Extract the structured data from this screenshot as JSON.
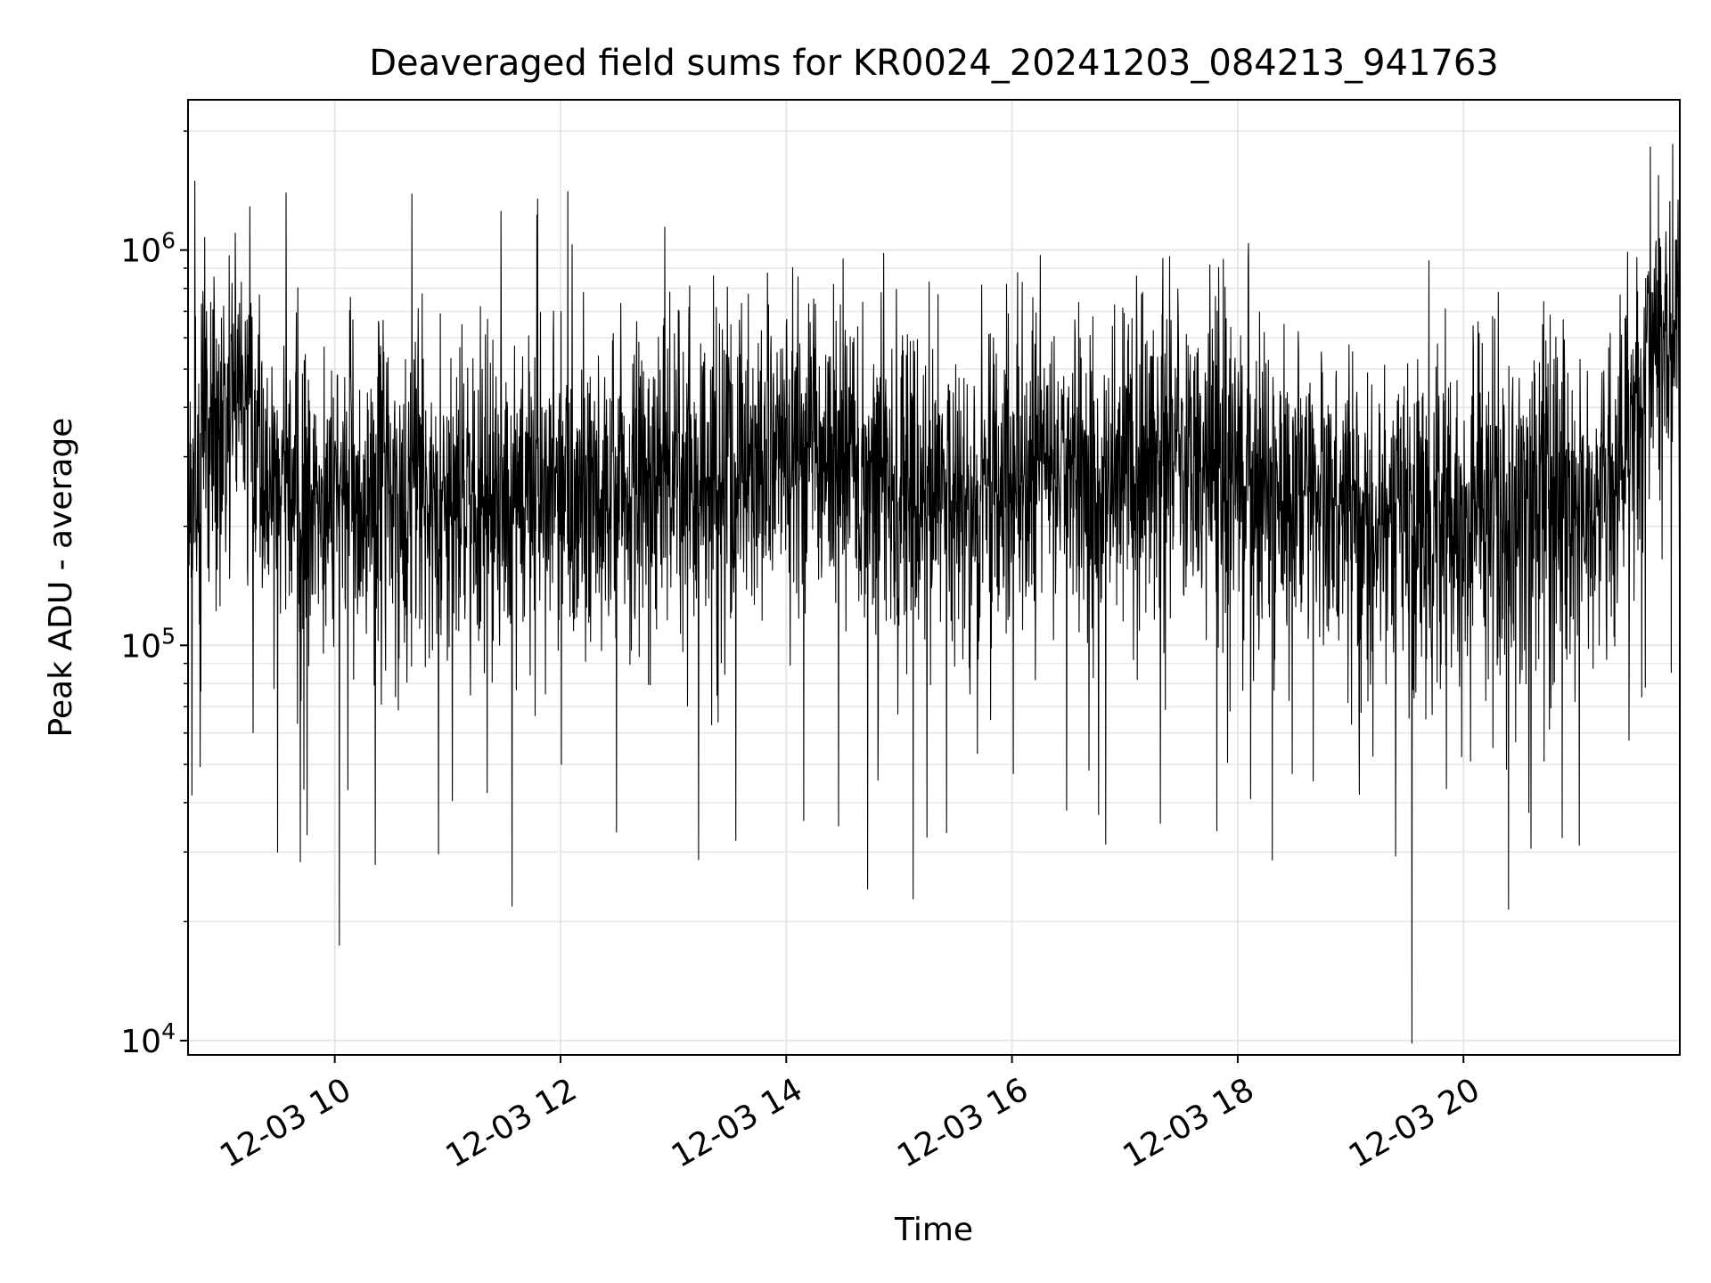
{
  "chart_data": {
    "type": "line",
    "title": "Deaveraged field sums for KR0024_20241203_084213_941763",
    "xlabel": "Time",
    "ylabel": "Peak ADU - average",
    "yscale": "log",
    "ylim": [
      9200,
      2400000
    ],
    "xlim": [
      "12-03 08:42",
      "12-03 21:55"
    ],
    "xticks": [
      "12-03 10",
      "12-03 12",
      "12-03 14",
      "12-03 16",
      "12-03 18",
      "12-03 20"
    ],
    "yticks": [
      {
        "value": 10000,
        "base": "10",
        "exp": "4"
      },
      {
        "value": 100000,
        "base": "10",
        "exp": "5"
      },
      {
        "value": 1000000,
        "base": "10",
        "exp": "6"
      }
    ],
    "grid": true,
    "line_color": "#000000",
    "grid_color": "#e6e6e6",
    "series": [
      {
        "x": [
          "12-03 08:42",
          "12-03 08:55",
          "12-03 09:10",
          "12-03 09:25",
          "12-03 09:40",
          "12-03 10:00",
          "12-03 10:20",
          "12-03 10:40",
          "12-03 11:00",
          "12-03 11:20",
          "12-03 11:40",
          "12-03 12:00",
          "12-03 12:20",
          "12-03 12:40",
          "12-03 13:00",
          "12-03 13:20",
          "12-03 13:40",
          "12-03 14:00",
          "12-03 14:20",
          "12-03 14:40",
          "12-03 15:00",
          "12-03 15:20",
          "12-03 15:40",
          "12-03 16:00",
          "12-03 16:20",
          "12-03 16:40",
          "12-03 17:00",
          "12-03 17:20",
          "12-03 17:40",
          "12-03 18:00",
          "12-03 18:20",
          "12-03 18:40",
          "12-03 19:00",
          "12-03 19:20",
          "12-03 19:40",
          "12-03 20:00",
          "12-03 20:20",
          "12-03 20:40",
          "12-03 21:00",
          "12-03 21:20",
          "12-03 21:40",
          "12-03 21:55"
        ],
        "y": [
          300000,
          380000,
          420000,
          250000,
          230000,
          240000,
          250000,
          230000,
          240000,
          250000,
          230000,
          240000,
          260000,
          250000,
          270000,
          280000,
          300000,
          320000,
          310000,
          280000,
          250000,
          240000,
          220000,
          260000,
          280000,
          270000,
          260000,
          330000,
          310000,
          280000,
          260000,
          230000,
          200000,
          190000,
          210000,
          220000,
          230000,
          210000,
          220000,
          250000,
          550000,
          600000
        ]
      }
    ]
  }
}
